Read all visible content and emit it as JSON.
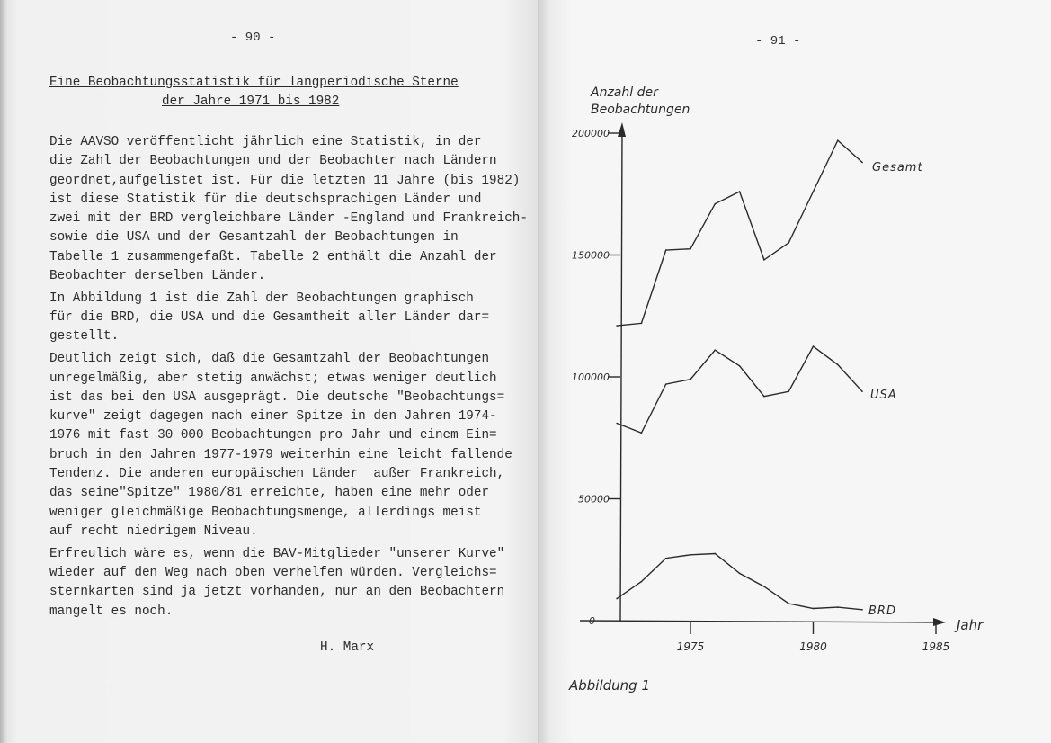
{
  "left_page": {
    "page_number": "- 90 -",
    "title_lines": [
      "Eine Beobachtungsstatistik für langperiodische Sterne",
      "der Jahre 1971 bis 1982"
    ],
    "paragraphs": [
      [
        "Die AAVSO veröffentlicht jährlich eine Statistik, in der",
        "die Zahl der Beobachtungen und der Beobachter nach Ländern",
        "geordnet,aufgelistet ist. Für die letzten 11 Jahre (bis 1982)",
        "ist diese Statistik für die deutschsprachigen Länder und",
        "zwei mit der BRD vergleichbare Länder -England und Frankreich-",
        "sowie die USA und der Gesamtzahl der Beobachtungen in",
        "Tabelle 1 zusammengefaßt. Tabelle 2 enthält die Anzahl der",
        "Beobachter derselben Länder."
      ],
      [
        "In Abbildung 1 ist die Zahl der Beobachtungen graphisch",
        "für die BRD, die USA und die Gesamtheit aller Länder dar=",
        "gestellt."
      ],
      [
        "Deutlich zeigt sich, daß die Gesamtzahl der Beobachtungen",
        "unregelmäßig, aber stetig anwächst; etwas weniger deutlich",
        "ist das bei den USA ausgeprägt. Die deutsche \"Beobachtungs=",
        "kurve\" zeigt dagegen nach einer Spitze in den Jahren 1974-",
        "1976 mit fast 30 000 Beobachtungen pro Jahr und einem Ein=",
        "bruch in den Jahren 1977-1979 weiterhin eine leicht fallende",
        "Tendenz. Die anderen europäischen Länder  außer Frankreich,",
        "das seine\"Spitze\" 1980/81 erreichte, haben eine mehr oder",
        "weniger gleichmäßige Beobachtungsmenge, allerdings meist",
        "auf recht niedrigem Niveau."
      ],
      [
        "Erfreulich wäre es, wenn die BAV-Mitglieder \"unserer Kurve\"",
        "wieder auf den Weg nach oben verhelfen würden. Vergleichs=",
        "sternkarten sind ja jetzt vorhanden, nur an den Beobachtern",
        "mangelt es noch."
      ]
    ],
    "signature": "H. Marx"
  },
  "right_page": {
    "page_number": "- 91 -",
    "caption": "Abbildung  1"
  },
  "chart_data": {
    "type": "line",
    "title": "",
    "ylabel": "Anzahl der Beobachtungen",
    "ylabel_lines": [
      "Anzahl der",
      "Beobachtungen"
    ],
    "xlabel": "Jahr",
    "xlim": [
      1971,
      1985
    ],
    "ylim": [
      0,
      200000
    ],
    "x_ticks": [
      1975,
      1980,
      1985
    ],
    "x_tick_labels": [
      "1975",
      "1980",
      "1985"
    ],
    "y_ticks": [
      0,
      50000,
      100000,
      150000,
      200000
    ],
    "y_tick_labels": [
      "0",
      "50000",
      "100000",
      "150000",
      "200000"
    ],
    "grid": false,
    "legend": "labels at line ends",
    "x": [
      1972,
      1973,
      1974,
      1975,
      1976,
      1977,
      1978,
      1979,
      1980,
      1981,
      1982
    ],
    "series": [
      {
        "name": "Gesamt",
        "values": [
          121000,
          122000,
          152000,
          152500,
          171000,
          176000,
          148000,
          155000,
          176000,
          197000,
          188000
        ]
      },
      {
        "name": "USA",
        "values": [
          81000,
          77000,
          97000,
          99000,
          111000,
          104500,
          92000,
          94000,
          112500,
          105000,
          94000
        ]
      },
      {
        "name": "BRD",
        "values": [
          9000,
          16000,
          25600,
          27000,
          27500,
          19400,
          14000,
          7000,
          5000,
          5500,
          4500
        ]
      }
    ]
  }
}
